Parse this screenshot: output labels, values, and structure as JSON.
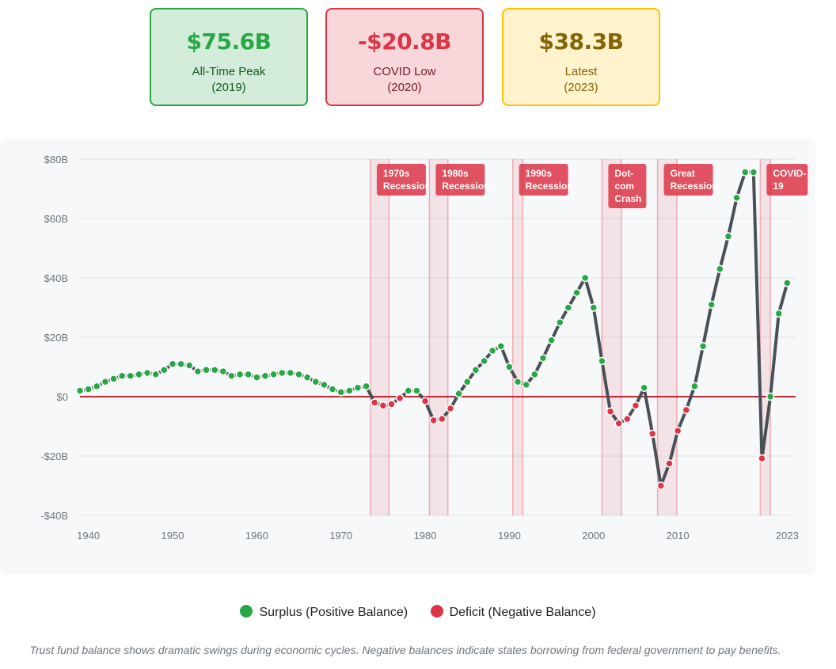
{
  "cards": [
    {
      "value": "$75.6B",
      "label": "All-Time Peak",
      "sub": "(2019)"
    },
    {
      "value": "-$20.8B",
      "label": "COVID Low",
      "sub": "(2020)"
    },
    {
      "value": "$38.3B",
      "label": "Latest",
      "sub": "(2023)"
    }
  ],
  "colors": {
    "surplus": "#28a745",
    "deficit": "#dc3545",
    "line": "#495057",
    "recession": "#dc3545"
  },
  "legend": {
    "surplus": "Surplus (Positive Balance)",
    "deficit": "Deficit (Negative Balance)"
  },
  "caption": "Trust fund balance shows dramatic swings during economic cycles. Negative balances indicate states borrowing from federal government to pay benefits.",
  "chart_data": {
    "type": "line",
    "title": "",
    "xlabel": "",
    "ylabel": "",
    "xlim": [
      1939,
      2024
    ],
    "ylim": [
      -40,
      80
    ],
    "y_ticks": [
      80,
      60,
      40,
      20,
      0,
      -20,
      -40
    ],
    "y_tick_labels": [
      "$80B",
      "$60B",
      "$40B",
      "$20B",
      "$0",
      "-$20B",
      "-$40B"
    ],
    "x_ticks": [
      1940,
      1950,
      1960,
      1970,
      1980,
      1990,
      2000,
      2010,
      2023
    ],
    "x_tick_labels": [
      "1940",
      "1950",
      "1960",
      "1970",
      "1980",
      "1990",
      "2000",
      "2010",
      "2023"
    ],
    "recessions": [
      {
        "start": 1973.5,
        "end": 1975.7,
        "label": "1970s Recession"
      },
      {
        "start": 1980.5,
        "end": 1982.7,
        "label": "1980s Recession"
      },
      {
        "start": 1990.4,
        "end": 1991.6,
        "label": "1990s Recession"
      },
      {
        "start": 2001.0,
        "end": 2003.3,
        "label": "Dot-com Crash"
      },
      {
        "start": 2007.6,
        "end": 2009.9,
        "label": "Great Recession"
      },
      {
        "start": 2019.8,
        "end": 2021.0,
        "label": "COVID-19"
      }
    ],
    "points": [
      [
        1939,
        2
      ],
      [
        1940,
        2.5
      ],
      [
        1941,
        3.5
      ],
      [
        1942,
        5
      ],
      [
        1943,
        6
      ],
      [
        1944,
        7
      ],
      [
        1945,
        7
      ],
      [
        1946,
        7.5
      ],
      [
        1947,
        8
      ],
      [
        1948,
        7.5
      ],
      [
        1949,
        9
      ],
      [
        1950,
        11
      ],
      [
        1951,
        11
      ],
      [
        1952,
        10.5
      ],
      [
        1953,
        8.5
      ],
      [
        1954,
        9
      ],
      [
        1955,
        9
      ],
      [
        1956,
        8.5
      ],
      [
        1957,
        7
      ],
      [
        1958,
        7.5
      ],
      [
        1959,
        7.5
      ],
      [
        1960,
        6.5
      ],
      [
        1961,
        7
      ],
      [
        1962,
        7.5
      ],
      [
        1963,
        8
      ],
      [
        1964,
        8
      ],
      [
        1965,
        7.5
      ],
      [
        1966,
        6.5
      ],
      [
        1967,
        5
      ],
      [
        1968,
        4
      ],
      [
        1969,
        2.5
      ],
      [
        1970,
        1.5
      ],
      [
        1971,
        2
      ],
      [
        1972,
        3
      ],
      [
        1973,
        3.5
      ],
      [
        1974,
        -2
      ],
      [
        1975,
        -3
      ],
      [
        1976,
        -2.5
      ],
      [
        1977,
        -0.5
      ],
      [
        1978,
        2
      ],
      [
        1979,
        2
      ],
      [
        1980,
        -1.5
      ],
      [
        1981,
        -8
      ],
      [
        1982,
        -7.5
      ],
      [
        1983,
        -4
      ],
      [
        1984,
        1
      ],
      [
        1985,
        5
      ],
      [
        1986,
        9
      ],
      [
        1987,
        12
      ],
      [
        1988,
        15.5
      ],
      [
        1989,
        17
      ],
      [
        1990,
        10
      ],
      [
        1991,
        5
      ],
      [
        1992,
        4
      ],
      [
        1993,
        7.5
      ],
      [
        1994,
        13
      ],
      [
        1995,
        19
      ],
      [
        1996,
        25
      ],
      [
        1997,
        30
      ],
      [
        1998,
        35
      ],
      [
        1999,
        40
      ],
      [
        2000,
        30
      ],
      [
        2001,
        12
      ],
      [
        2002,
        -5
      ],
      [
        2003,
        -9
      ],
      [
        2004,
        -7.5
      ],
      [
        2005,
        -3
      ],
      [
        2006,
        3
      ],
      [
        2007,
        -12.5
      ],
      [
        2008,
        -30
      ],
      [
        2009,
        -22.5
      ],
      [
        2010,
        -11.5
      ],
      [
        2011,
        -4.5
      ],
      [
        2012,
        3.5
      ],
      [
        2013,
        17
      ],
      [
        2014,
        31
      ],
      [
        2015,
        43
      ],
      [
        2016,
        54
      ],
      [
        2017,
        67
      ],
      [
        2018,
        75.6
      ],
      [
        2019,
        75.6
      ],
      [
        2020,
        -20.8
      ],
      [
        2021,
        0
      ],
      [
        2022,
        28
      ],
      [
        2023,
        38.3
      ]
    ]
  }
}
